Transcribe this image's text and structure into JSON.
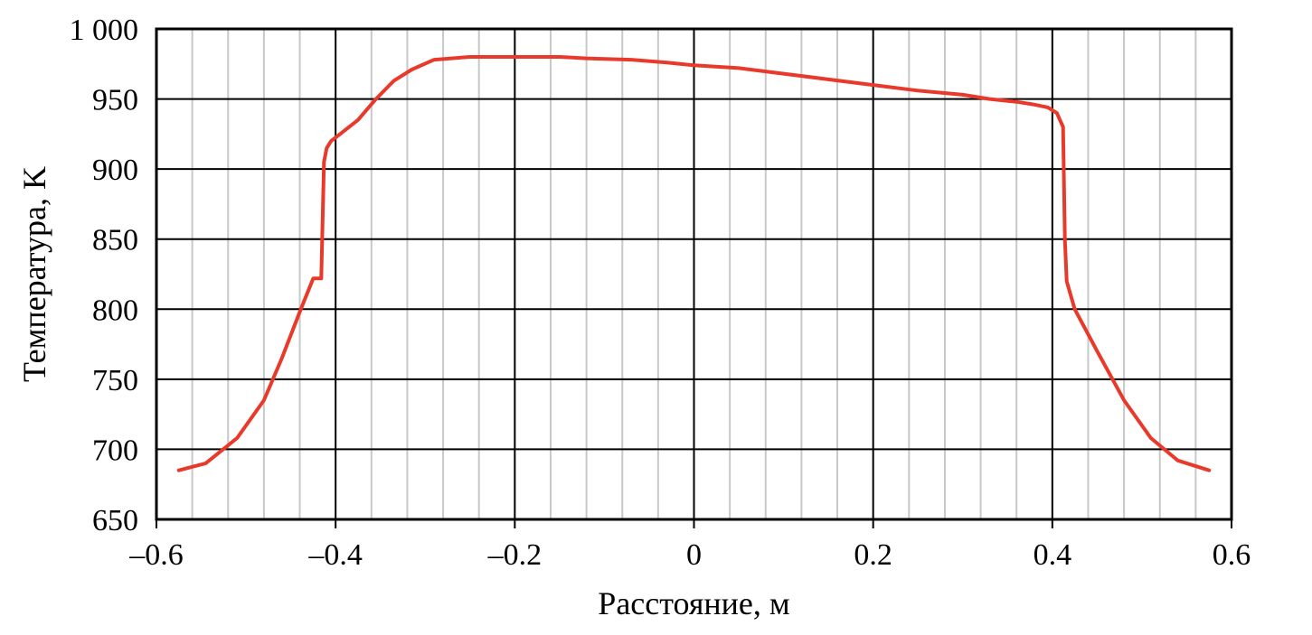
{
  "chart_data": {
    "type": "line",
    "title": "",
    "xlabel": "Расстояние, м",
    "ylabel": "Температура, K",
    "xlim": [
      -0.6,
      0.6
    ],
    "ylim": [
      650,
      1000
    ],
    "x_major_ticks": [
      -0.6,
      -0.4,
      -0.2,
      0,
      0.2,
      0.4,
      0.6
    ],
    "x_tick_labels": [
      "–0.6",
      "–0.4",
      "–0.2",
      "0",
      "0.2",
      "0.4",
      "0.6"
    ],
    "x_minor_step": 0.04,
    "y_major_ticks": [
      650,
      700,
      750,
      800,
      850,
      900,
      950,
      1000
    ],
    "y_tick_labels": [
      "650",
      "700",
      "750",
      "800",
      "850",
      "900",
      "950",
      "1 000"
    ],
    "grid": true,
    "legend": "none",
    "series": [
      {
        "color": "#e8392b",
        "x": [
          -0.575,
          -0.545,
          -0.51,
          -0.48,
          -0.46,
          -0.44,
          -0.425,
          -0.416,
          -0.413,
          -0.41,
          -0.405,
          -0.395,
          -0.375,
          -0.355,
          -0.335,
          -0.315,
          -0.29,
          -0.25,
          -0.2,
          -0.15,
          -0.12,
          -0.07,
          -0.03,
          0.0,
          0.05,
          0.1,
          0.15,
          0.2,
          0.25,
          0.3,
          0.33,
          0.36,
          0.38,
          0.395,
          0.405,
          0.412,
          0.414,
          0.416,
          0.425,
          0.45,
          0.48,
          0.51,
          0.54,
          0.575
        ],
        "y": [
          685,
          690,
          708,
          735,
          765,
          798,
          822,
          822,
          905,
          915,
          920,
          925,
          935,
          950,
          963,
          971,
          978,
          980,
          980,
          980,
          979,
          978,
          976,
          974,
          972,
          968,
          964,
          960,
          956,
          953,
          950,
          948,
          946,
          944,
          940,
          930,
          850,
          820,
          800,
          770,
          735,
          708,
          692,
          685
        ]
      }
    ]
  }
}
